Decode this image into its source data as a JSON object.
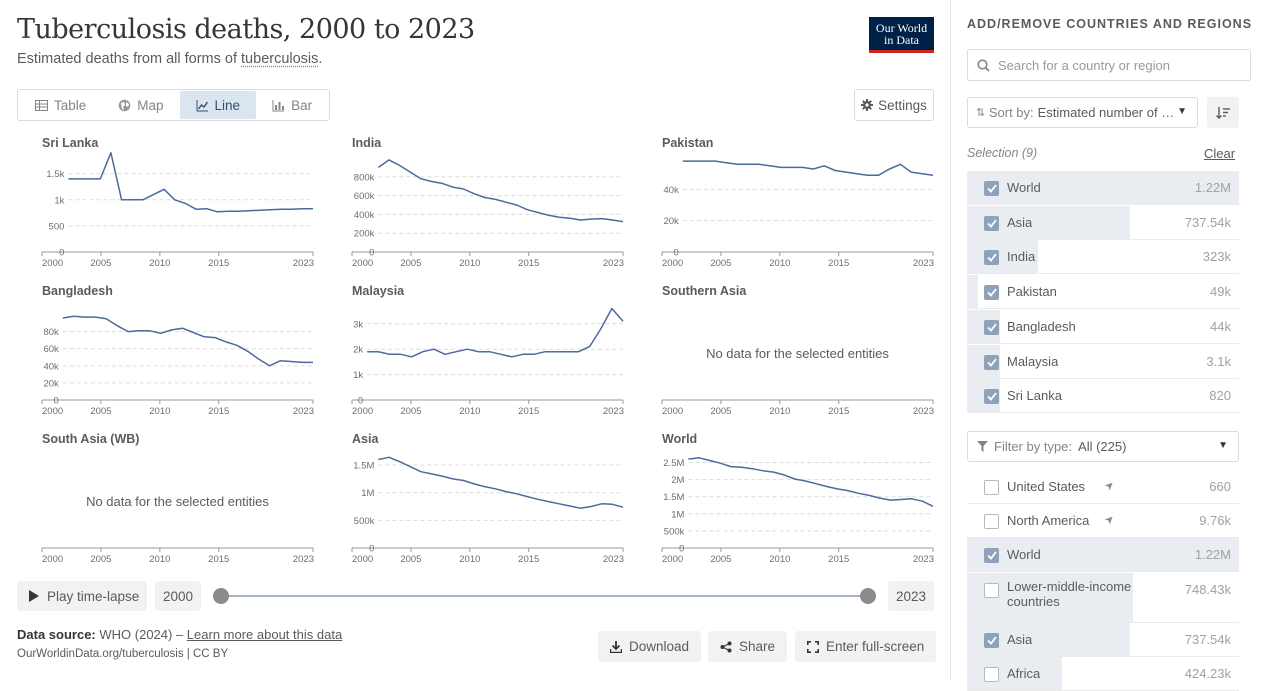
{
  "header": {
    "title": "Tuberculosis deaths, 2000 to 2023",
    "subtitle_prefix": "Estimated deaths from all forms of ",
    "subtitle_link": "tuberculosis",
    "subtitle_suffix": ".",
    "logo_line1": "Our World",
    "logo_line2": "in Data"
  },
  "tabs": [
    {
      "label": "Table",
      "icon": "table-icon"
    },
    {
      "label": "Map",
      "icon": "globe-icon"
    },
    {
      "label": "Line",
      "icon": "line-chart-icon",
      "active": true
    },
    {
      "label": "Bar",
      "icon": "bar-chart-icon"
    }
  ],
  "settings_label": "Settings",
  "timeline": {
    "play_label": "Play time-lapse",
    "start": "2000",
    "end": "2023"
  },
  "footer": {
    "source_label": "Data source:",
    "source_text": "WHO (2024) – ",
    "learn_more": "Learn more about this data",
    "url": "OurWorldinData.org/tuberculosis | CC BY"
  },
  "buttons": {
    "download": "Download",
    "share": "Share",
    "fullscreen": "Enter full-screen"
  },
  "sidebar": {
    "heading": "ADD/REMOVE COUNTRIES AND REGIONS",
    "search_placeholder": "Search for a country or region",
    "sort_label": "Sort by:",
    "sort_value": "Estimated number of …",
    "selection_label": "Selection (9)",
    "clear_label": "Clear",
    "selected": [
      {
        "name": "World",
        "value": "1.22M",
        "frac": 1.0
      },
      {
        "name": "Asia",
        "value": "737.54k",
        "frac": 0.6
      },
      {
        "name": "India",
        "value": "323k",
        "frac": 0.26
      },
      {
        "name": "Pakistan",
        "value": "49k",
        "frac": 0.04
      },
      {
        "name": "Bangladesh",
        "value": "44k",
        "frac": 0.0
      },
      {
        "name": "Malaysia",
        "value": "3.1k",
        "frac": 0.0
      },
      {
        "name": "Sri Lanka",
        "value": "820",
        "frac": 0.0
      }
    ],
    "filter_label": "Filter by type:",
    "filter_value": "All (225)",
    "all": [
      {
        "name": "United States",
        "value": "660",
        "checked": false,
        "frac": 0.0,
        "pin": true
      },
      {
        "name": "North America",
        "value": "9.76k",
        "checked": false,
        "frac": 0.0,
        "pin": true
      },
      {
        "name": "World",
        "value": "1.22M",
        "checked": true,
        "frac": 1.0
      },
      {
        "name": "Lower-middle-income countries",
        "value": "748.43k",
        "checked": false,
        "frac": 0.61
      },
      {
        "name": "Asia",
        "value": "737.54k",
        "checked": true,
        "frac": 0.6
      },
      {
        "name": "Africa",
        "value": "424.23k",
        "checked": false,
        "frac": 0.35
      }
    ]
  },
  "chart_data": {
    "type": "line",
    "no_data_text": "No data for the selected entities",
    "x_ticks": [
      2000,
      2005,
      2010,
      2015,
      2023
    ],
    "x": [
      2000,
      2001,
      2002,
      2003,
      2004,
      2005,
      2006,
      2007,
      2008,
      2009,
      2010,
      2011,
      2012,
      2013,
      2014,
      2015,
      2016,
      2017,
      2018,
      2019,
      2020,
      2021,
      2022,
      2023
    ],
    "panels": [
      {
        "name": "Sri Lanka",
        "ylim": [
          0,
          1800
        ],
        "yticks": [
          0,
          500,
          1000,
          1500
        ],
        "yticklabels": [
          "0",
          "500",
          "1k",
          "1.5k"
        ],
        "values": [
          1400,
          1400,
          1400,
          1400,
          1900,
          1000,
          1000,
          1000,
          1100,
          1200,
          1000,
          930,
          820,
          830,
          770,
          780,
          780,
          790,
          800,
          810,
          820,
          820,
          830,
          830
        ]
      },
      {
        "name": "India",
        "ylim": [
          0,
          1000000
        ],
        "yticks": [
          0,
          200000,
          400000,
          600000,
          800000
        ],
        "yticklabels": [
          "0",
          "200k",
          "400k",
          "600k",
          "800k"
        ],
        "values": [
          900000,
          980000,
          920000,
          850000,
          780000,
          750000,
          730000,
          690000,
          670000,
          620000,
          580000,
          560000,
          530000,
          500000,
          450000,
          420000,
          390000,
          370000,
          360000,
          340000,
          350000,
          355000,
          340000,
          323000
        ]
      },
      {
        "name": "Pakistan",
        "ylim": [
          0,
          60000
        ],
        "yticks": [
          0,
          20000,
          40000
        ],
        "yticklabels": [
          "0",
          "20k",
          "40k"
        ],
        "values": [
          58000,
          58000,
          58000,
          58000,
          57000,
          56000,
          56000,
          56000,
          55000,
          54000,
          54000,
          54000,
          53000,
          55000,
          52000,
          51000,
          50000,
          49000,
          49000,
          53000,
          56000,
          51000,
          50000,
          49000
        ]
      },
      {
        "name": "Bangladesh",
        "ylim": [
          0,
          110000
        ],
        "yticks": [
          0,
          20000,
          40000,
          60000,
          80000
        ],
        "yticklabels": [
          "0",
          "20k",
          "40k",
          "60k",
          "80k"
        ],
        "values": [
          96000,
          98000,
          97000,
          97000,
          95000,
          87000,
          80000,
          81000,
          81000,
          78000,
          82000,
          84000,
          79000,
          74000,
          73000,
          68000,
          64000,
          57000,
          48000,
          40000,
          46000,
          45000,
          44000,
          44000
        ]
      },
      {
        "name": "Malaysia",
        "ylim": [
          0,
          3700
        ],
        "yticks": [
          0,
          1000,
          2000,
          3000
        ],
        "yticklabels": [
          "0",
          "1k",
          "2k",
          "3k"
        ],
        "values": [
          1900,
          1900,
          1800,
          1800,
          1700,
          1900,
          2000,
          1800,
          1900,
          2000,
          1900,
          1900,
          1800,
          1700,
          1800,
          1800,
          1900,
          1900,
          1900,
          1900,
          2100,
          2800,
          3600,
          3100
        ]
      },
      {
        "name": "Southern Asia",
        "nodata": true
      },
      {
        "name": "South Asia (WB)",
        "nodata": true
      },
      {
        "name": "Asia",
        "ylim": [
          0,
          1700000
        ],
        "yticks": [
          0,
          500000,
          1000000,
          1500000
        ],
        "yticklabels": [
          "0",
          "500k",
          "1M",
          "1.5M"
        ],
        "values": [
          1600000,
          1640000,
          1560000,
          1470000,
          1380000,
          1340000,
          1300000,
          1250000,
          1220000,
          1160000,
          1110000,
          1070000,
          1020000,
          980000,
          930000,
          880000,
          840000,
          800000,
          760000,
          720000,
          750000,
          800000,
          790000,
          737540
        ]
      },
      {
        "name": "World",
        "ylim": [
          0,
          2750000
        ],
        "yticks": [
          0,
          500000,
          1000000,
          1500000,
          2000000,
          2500000
        ],
        "yticklabels": [
          "0",
          "500k",
          "1M",
          "1.5M",
          "2M",
          "2.5M"
        ],
        "values": [
          2600000,
          2640000,
          2560000,
          2480000,
          2380000,
          2360000,
          2320000,
          2260000,
          2220000,
          2140000,
          2020000,
          1960000,
          1880000,
          1800000,
          1730000,
          1680000,
          1600000,
          1540000,
          1460000,
          1400000,
          1420000,
          1440000,
          1370000,
          1220000
        ]
      }
    ],
    "line_color": "#4c6a9c"
  }
}
